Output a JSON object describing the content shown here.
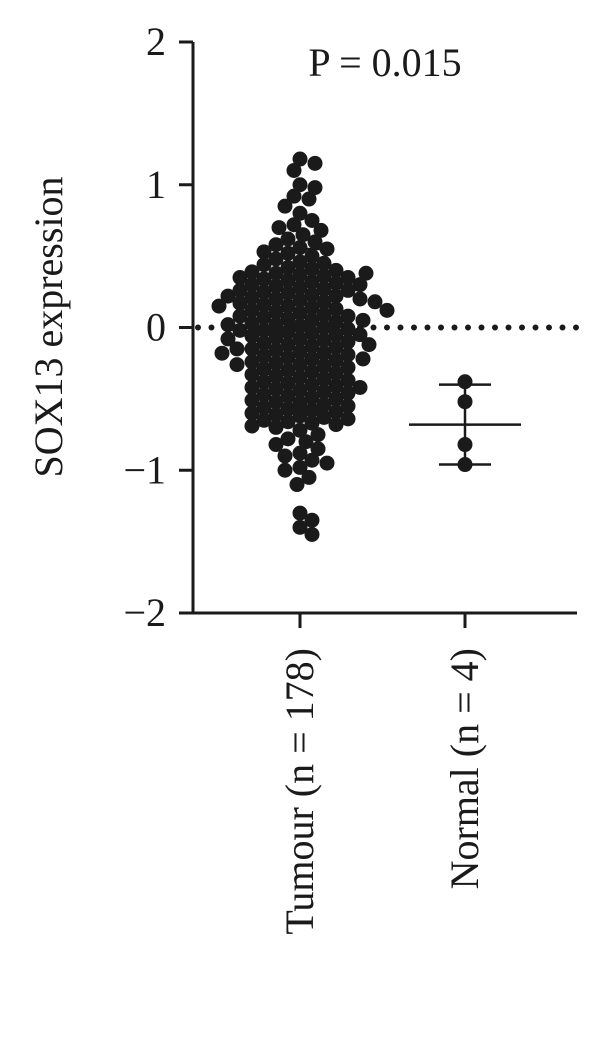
{
  "chart_data": {
    "type": "dot",
    "annotation": "P = 0.015",
    "y_label": "SOX13 expression",
    "categories": [
      "Tumour (n = 178)",
      "Normal (n = 4)"
    ],
    "values": [
      [
        1.18,
        1.15,
        1.1,
        1.0,
        0.98,
        0.92,
        0.9,
        0.85,
        0.8,
        0.75,
        0.72,
        0.7,
        0.68,
        0.65,
        0.62,
        0.6,
        0.58,
        0.56,
        0.55,
        0.53,
        0.52,
        0.5,
        0.48,
        0.46,
        0.45,
        0.44,
        0.42,
        0.41,
        0.4,
        0.39,
        0.38,
        0.37,
        0.36,
        0.35,
        0.35,
        0.34,
        0.33,
        0.32,
        0.31,
        0.3,
        0.3,
        0.29,
        0.28,
        0.27,
        0.26,
        0.25,
        0.24,
        0.23,
        0.22,
        0.21,
        0.2,
        0.2,
        0.19,
        0.18,
        0.17,
        0.16,
        0.15,
        0.14,
        0.13,
        0.12,
        0.11,
        0.1,
        0.09,
        0.08,
        0.07,
        0.06,
        0.05,
        0.04,
        0.03,
        0.02,
        0.01,
        0,
        -0.01,
        -0.02,
        -0.03,
        -0.04,
        -0.05,
        -0.06,
        -0.07,
        -0.08,
        -0.09,
        -0.1,
        -0.11,
        -0.12,
        -0.13,
        -0.14,
        -0.15,
        -0.16,
        -0.17,
        -0.18,
        -0.19,
        -0.2,
        -0.21,
        -0.22,
        -0.23,
        -0.24,
        -0.25,
        -0.26,
        -0.27,
        -0.28,
        -0.29,
        -0.3,
        -0.31,
        -0.32,
        -0.33,
        -0.34,
        -0.35,
        -0.36,
        -0.37,
        -0.38,
        -0.39,
        -0.4,
        -0.41,
        -0.42,
        -0.43,
        -0.44,
        -0.45,
        -0.46,
        -0.47,
        -0.48,
        -0.49,
        -0.5,
        -0.51,
        -0.52,
        -0.53,
        -0.54,
        -0.55,
        -0.56,
        -0.57,
        -0.58,
        -0.59,
        -0.6,
        -0.61,
        -0.62,
        -0.63,
        -0.64,
        -0.65,
        -0.66,
        -0.67,
        -0.68,
        -0.69,
        -0.7,
        0.22,
        0.18,
        0.15,
        0.12,
        0.08,
        0.05,
        0.02,
        -0.02,
        -0.05,
        -0.08,
        -0.12,
        -0.15,
        -0.18,
        -0.22,
        0.26,
        -0.26,
        -0.72,
        -0.75,
        -0.78,
        -0.8,
        -0.82,
        -0.85,
        -0.88,
        -0.9,
        -0.93,
        -0.95,
        -0.98,
        -1.0,
        -1.05,
        -1.1,
        -1.3,
        -1.35,
        -1.4,
        -1.45,
        0.38,
        -0.42
      ],
      [
        -0.38,
        -0.52,
        -0.82,
        -0.96
      ]
    ],
    "mean": [
      -0.02,
      -0.68
    ],
    "error_bars": [
      [
        0.55,
        -0.58
      ],
      [
        -0.4,
        -0.96
      ]
    ],
    "reference_line": 0,
    "color": "#1a1a1a",
    "ylim": [
      -2,
      2
    ],
    "yticks": [
      {
        "value": -2,
        "label": "−2"
      },
      {
        "value": -1,
        "label": "−1"
      },
      0,
      1,
      2
    ]
  }
}
